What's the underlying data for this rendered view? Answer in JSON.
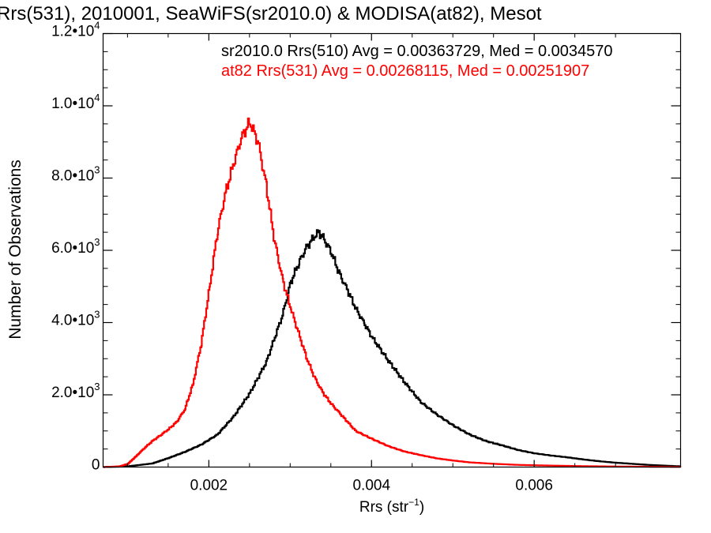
{
  "chart_data": {
    "type": "line",
    "title": "Rrs(531), 2010001, SeaWiFS(sr2010.0) & MODISA(at82), Mesot",
    "xlabel": "Rrs (str",
    "xlabel_sup": "−1",
    "xlabel_close": ")",
    "ylabel": "Number of Observations",
    "xlim": [
      0.0007,
      0.0078
    ],
    "ylim": [
      0,
      12000
    ],
    "x_ticks": [
      {
        "value": 0.002,
        "label": "0.002"
      },
      {
        "value": 0.004,
        "label": "0.004"
      },
      {
        "value": 0.006,
        "label": "0.006"
      }
    ],
    "y_ticks": [
      {
        "value": 0,
        "mant": "0",
        "exp": ""
      },
      {
        "value": 2000,
        "mant": "2.0•10",
        "exp": "3"
      },
      {
        "value": 4000,
        "mant": "4.0•10",
        "exp": "3"
      },
      {
        "value": 6000,
        "mant": "6.0•10",
        "exp": "3"
      },
      {
        "value": 8000,
        "mant": "8.0•10",
        "exp": "3"
      },
      {
        "value": 10000,
        "mant": "1.0•10",
        "exp": "4"
      },
      {
        "value": 12000,
        "mant": "1.2•10",
        "exp": "4"
      }
    ],
    "grid": false,
    "legend_position": "top-right",
    "series": [
      {
        "name": "sr2010.0 Rrs(510) Avg = 0.00363729, Med = 0.0034570",
        "color": "#000000",
        "points": [
          [
            0.0007,
            0
          ],
          [
            0.001,
            20
          ],
          [
            0.0013,
            100
          ],
          [
            0.0015,
            250
          ],
          [
            0.0017,
            420
          ],
          [
            0.0019,
            620
          ],
          [
            0.0021,
            900
          ],
          [
            0.0023,
            1400
          ],
          [
            0.0025,
            2050
          ],
          [
            0.0027,
            2900
          ],
          [
            0.0029,
            4200
          ],
          [
            0.003,
            5100
          ],
          [
            0.0031,
            5650
          ],
          [
            0.0032,
            6100
          ],
          [
            0.0033,
            6400
          ],
          [
            0.00335,
            6500
          ],
          [
            0.0034,
            6350
          ],
          [
            0.0035,
            5950
          ],
          [
            0.0036,
            5350
          ],
          [
            0.0037,
            4900
          ],
          [
            0.0038,
            4400
          ],
          [
            0.0039,
            4000
          ],
          [
            0.004,
            3600
          ],
          [
            0.0042,
            2950
          ],
          [
            0.0044,
            2350
          ],
          [
            0.0046,
            1800
          ],
          [
            0.0048,
            1450
          ],
          [
            0.005,
            1150
          ],
          [
            0.0052,
            900
          ],
          [
            0.0054,
            720
          ],
          [
            0.0056,
            600
          ],
          [
            0.0058,
            470
          ],
          [
            0.006,
            380
          ],
          [
            0.0062,
            320
          ],
          [
            0.0064,
            270
          ],
          [
            0.0066,
            210
          ],
          [
            0.0068,
            160
          ],
          [
            0.007,
            120
          ],
          [
            0.0072,
            90
          ],
          [
            0.0074,
            60
          ],
          [
            0.0076,
            40
          ],
          [
            0.0078,
            20
          ]
        ]
      },
      {
        "name": "at82 Rrs(531) Avg = 0.00268115, Med = 0.00251907",
        "color": "#ff0000",
        "points": [
          [
            0.0007,
            0
          ],
          [
            0.0009,
            20
          ],
          [
            0.001,
            90
          ],
          [
            0.0011,
            300
          ],
          [
            0.0012,
            520
          ],
          [
            0.0013,
            720
          ],
          [
            0.0014,
            880
          ],
          [
            0.0015,
            1050
          ],
          [
            0.0016,
            1250
          ],
          [
            0.0017,
            1600
          ],
          [
            0.0018,
            2300
          ],
          [
            0.0019,
            3400
          ],
          [
            0.002,
            4900
          ],
          [
            0.0021,
            6500
          ],
          [
            0.0022,
            7600
          ],
          [
            0.0023,
            8400
          ],
          [
            0.0024,
            9150
          ],
          [
            0.0025,
            9550
          ],
          [
            0.0026,
            9000
          ],
          [
            0.0027,
            7800
          ],
          [
            0.0028,
            6300
          ],
          [
            0.0029,
            5200
          ],
          [
            0.003,
            4400
          ],
          [
            0.0031,
            3700
          ],
          [
            0.0032,
            3000
          ],
          [
            0.0033,
            2450
          ],
          [
            0.0034,
            2050
          ],
          [
            0.0035,
            1750
          ],
          [
            0.0036,
            1500
          ],
          [
            0.0037,
            1250
          ],
          [
            0.0038,
            1000
          ],
          [
            0.004,
            780
          ],
          [
            0.0042,
            580
          ],
          [
            0.0044,
            430
          ],
          [
            0.0046,
            330
          ],
          [
            0.0048,
            240
          ],
          [
            0.005,
            180
          ],
          [
            0.0052,
            130
          ],
          [
            0.0055,
            90
          ],
          [
            0.0058,
            60
          ],
          [
            0.0062,
            40
          ],
          [
            0.0066,
            25
          ],
          [
            0.007,
            15
          ],
          [
            0.0075,
            8
          ],
          [
            0.0078,
            5
          ]
        ]
      }
    ]
  }
}
